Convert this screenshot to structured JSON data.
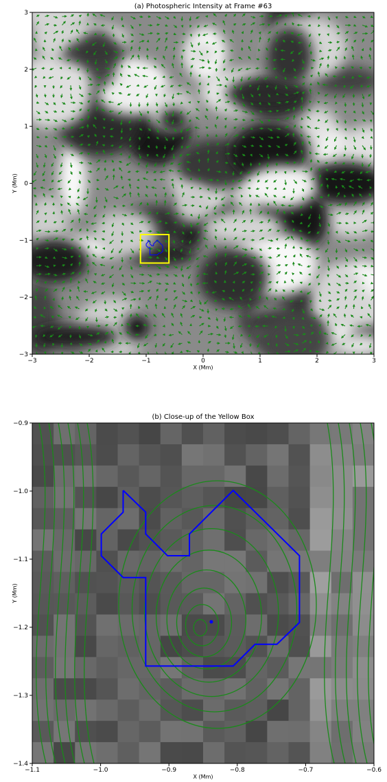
{
  "chart_data": [
    {
      "type": "vector-field",
      "title": "(a) Photospheric Intensity at Frame #63",
      "xlabel": "X (Mm)",
      "ylabel": "Y (Mm)",
      "xlim": [
        -3,
        3
      ],
      "ylim": [
        -3,
        3
      ],
      "xticks": [
        {
          "value": -3,
          "label": "−3"
        },
        {
          "value": -2,
          "label": "−2"
        },
        {
          "value": -1,
          "label": "−1"
        },
        0,
        1,
        2,
        3
      ],
      "yticks": [
        {
          "value": -3,
          "label": "−3"
        },
        {
          "value": -2,
          "label": "−2"
        },
        {
          "value": -1,
          "label": "−1"
        },
        0,
        1,
        2,
        3
      ],
      "box": {
        "x": [
          -1.1,
          -0.6
        ],
        "y": [
          -1.4,
          -0.9
        ],
        "color": "#ffff00"
      },
      "arrow_color": "#1a8a1a"
    },
    {
      "type": "streamline",
      "title": "(b) Close-up of the Yellow Box",
      "xlabel": "X (Mm)",
      "ylabel": "Y (Mm)",
      "xlim": [
        -1.1,
        -0.6
      ],
      "ylim": [
        -1.4,
        -0.9
      ],
      "xticks": [
        {
          "value": -1.1,
          "label": "−1.1"
        },
        {
          "value": -1.0,
          "label": "−1.0"
        },
        {
          "value": -0.9,
          "label": "−0.9"
        },
        {
          "value": -0.8,
          "label": "−0.8"
        },
        {
          "value": -0.7,
          "label": "−0.7"
        },
        {
          "value": -0.6,
          "label": "−0.6"
        }
      ],
      "yticks": [
        {
          "value": -1.4,
          "label": "−1.4"
        },
        {
          "value": -1.3,
          "label": "−1.3"
        },
        {
          "value": -1.2,
          "label": "−1.2"
        },
        {
          "value": -1.1,
          "label": "−1.1"
        },
        {
          "value": -1.0,
          "label": "−1.0"
        },
        {
          "value": -0.9,
          "label": "−0.9"
        }
      ],
      "contour": {
        "color": "#0000ff",
        "x": [
          -0.967,
          -0.967,
          -0.999,
          -0.999,
          -0.967,
          -0.934,
          -0.934,
          -0.806,
          -0.774,
          -0.742,
          -0.709,
          -0.709,
          -0.806,
          -0.87,
          -0.87,
          -0.902,
          -0.934,
          -0.934,
          -0.967
        ],
        "y": [
          -0.999,
          -1.031,
          -1.063,
          -1.095,
          -1.127,
          -1.127,
          -1.257,
          -1.257,
          -1.225,
          -1.225,
          -1.193,
          -1.095,
          -0.999,
          -1.063,
          -1.095,
          -1.095,
          -1.063,
          -1.031,
          -0.999
        ]
      },
      "point": {
        "x": -0.838,
        "y": -1.192
      },
      "arrow_color": "#1a8a1a"
    }
  ]
}
